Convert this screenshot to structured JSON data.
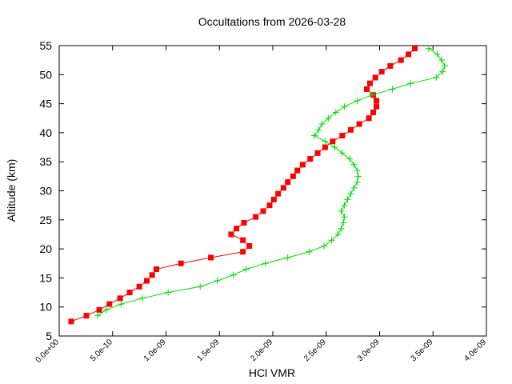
{
  "chart_data": {
    "type": "line",
    "title": "Occultations from 2026-03-28",
    "xlabel": "HCl VMR",
    "ylabel": "Altitude (km)",
    "xlim": [
      0,
      4e-09
    ],
    "ylim": [
      5,
      55
    ],
    "xticks": [
      {
        "value": 0,
        "label": "0.0e+00"
      },
      {
        "value": 5e-10,
        "label": "5.0e-10"
      },
      {
        "value": 1e-09,
        "label": "1.0e-09"
      },
      {
        "value": 1.5e-09,
        "label": "1.5e-09"
      },
      {
        "value": 2e-09,
        "label": "2.0e-09"
      },
      {
        "value": 2.5e-09,
        "label": "2.5e-09"
      },
      {
        "value": 3e-09,
        "label": "3.0e-09"
      },
      {
        "value": 3.5e-09,
        "label": "3.5e-09"
      },
      {
        "value": 4e-09,
        "label": "4.0e-09"
      }
    ],
    "yticks": [
      5,
      10,
      15,
      20,
      25,
      30,
      35,
      40,
      45,
      50,
      55
    ],
    "series": [
      {
        "color": "#ff0000",
        "marker": "square",
        "x": [
          1.12e-10,
          2.55e-10,
          3.75e-10,
          4.7e-10,
          5.7e-10,
          6.6e-10,
          7.5e-10,
          8.2e-10,
          8.7e-10,
          9.1e-10,
          1.14e-09,
          1.42e-09,
          1.72e-09,
          1.78e-09,
          1.72e-09,
          1.61e-09,
          1.66e-09,
          1.73e-09,
          1.84e-09,
          1.91e-09,
          1.97e-09,
          2.01e-09,
          2.05e-09,
          2.1e-09,
          2.14e-09,
          2.19e-09,
          2.23e-09,
          2.28e-09,
          2.35e-09,
          2.42e-09,
          2.49e-09,
          2.56e-09,
          2.65e-09,
          2.73e-09,
          2.81e-09,
          2.9e-09,
          2.94e-09,
          2.97e-09,
          2.97e-09,
          2.94e-09,
          2.88e-09,
          2.91e-09,
          2.96e-09,
          3.02e-09,
          3.1e-09,
          3.2e-09,
          3.27e-09,
          3.33e-09
        ],
        "values": [
          7.5,
          8.5,
          9.5,
          10.5,
          11.5,
          12.5,
          13.5,
          14.5,
          15.5,
          16.5,
          17.5,
          18.5,
          19.5,
          20.5,
          21.5,
          22.5,
          23.5,
          24.5,
          25.5,
          26.5,
          27.5,
          28.5,
          29.5,
          30.5,
          31.5,
          32.5,
          33.5,
          34.5,
          35.5,
          36.5,
          37.5,
          38.5,
          39.5,
          40.5,
          41.5,
          42.5,
          43.5,
          44.5,
          45.5,
          46.5,
          47.5,
          48.5,
          49.5,
          50.5,
          51.5,
          52.5,
          53.5,
          54.5
        ]
      },
      {
        "color": "#00dd00",
        "marker": "plus",
        "x": [
          3.6e-10,
          4.4e-10,
          5.8e-10,
          7.8e-10,
          1.02e-09,
          1.32e-09,
          1.48e-09,
          1.63e-09,
          1.75e-09,
          1.93e-09,
          2.14e-09,
          2.34e-09,
          2.48e-09,
          2.55e-09,
          2.61e-09,
          2.64e-09,
          2.66e-09,
          2.67e-09,
          2.64e-09,
          2.67e-09,
          2.7e-09,
          2.73e-09,
          2.76e-09,
          2.79e-09,
          2.8e-09,
          2.79e-09,
          2.76e-09,
          2.72e-09,
          2.65e-09,
          2.58e-09,
          2.49e-09,
          2.39e-09,
          2.43e-09,
          2.46e-09,
          2.52e-09,
          2.59e-09,
          2.67e-09,
          2.79e-09,
          2.93e-09,
          3.12e-09,
          3.29e-09,
          3.53e-09,
          3.59e-09,
          3.61e-09,
          3.58e-09,
          3.54e-09,
          3.46e-09
        ],
        "values": [
          8.5,
          9.5,
          10.5,
          11.5,
          12.5,
          13.5,
          14.5,
          15.5,
          16.5,
          17.5,
          18.5,
          19.5,
          20.5,
          21.5,
          22.5,
          23.5,
          24.5,
          25.5,
          26.5,
          27.5,
          28.5,
          29.5,
          30.5,
          31.5,
          32.5,
          33.5,
          34.5,
          35.5,
          36.5,
          37.5,
          38.5,
          39.5,
          40.5,
          41.5,
          42.5,
          43.5,
          44.5,
          45.5,
          46.5,
          47.5,
          48.5,
          49.5,
          50.5,
          51.5,
          52.5,
          53.5,
          54.5
        ]
      }
    ]
  }
}
